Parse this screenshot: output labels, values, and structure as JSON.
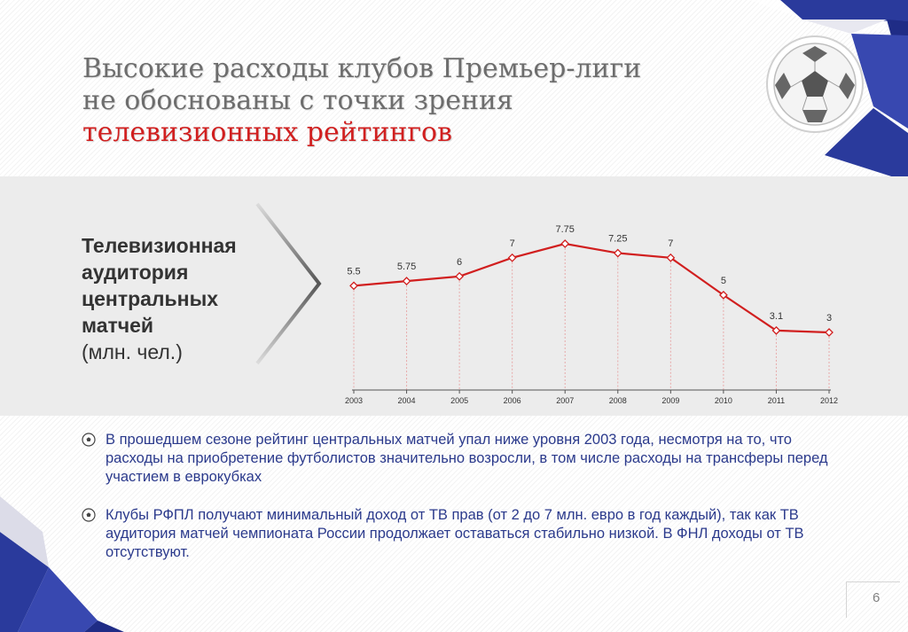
{
  "title": {
    "line1": "Высокие расходы клубов Премьер-лиги",
    "line2": "не обоснованы с точки зрения",
    "line3": "телевизионных рейтингов"
  },
  "colors": {
    "title_gray": "#6d6d6d",
    "title_accent": "#d11f1f",
    "line": "#d11f1f",
    "bullet_text": "#2b3a8c",
    "deco_blue": "#2a3a9c"
  },
  "chart_label": {
    "bold": "Телевизионная аудитория центральных матчей",
    "unit": "(млн. чел.)"
  },
  "chart_data": {
    "type": "line",
    "categories": [
      "2003",
      "2004",
      "2005",
      "2006",
      "2007",
      "2008",
      "2009",
      "2010",
      "2011",
      "2012"
    ],
    "values": [
      5.5,
      5.75,
      6,
      7,
      7.75,
      7.25,
      7,
      5,
      3.1,
      3
    ],
    "value_labels": [
      "5.5",
      "5.75",
      "6",
      "7",
      "7.75",
      "7.25",
      "7",
      "5",
      "3.1",
      "3"
    ],
    "grid": false,
    "marker": "diamond"
  },
  "bullets": [
    "В прошедшем сезоне рейтинг центральных матчей упал ниже уровня 2003 года, несмотря на то, что расходы на приобретение футболистов значительно возросли, в том числе расходы на трансферы перед участием в еврокубках",
    "Клубы РФПЛ получают минимальный доход от ТВ прав (от 2 до 7 млн. евро в год каждый), так как ТВ аудитория матчей чемпионата России продолжает оставаться стабильно низкой. В ФНЛ доходы от ТВ отсутствуют."
  ],
  "bullet_icon": "soccer-ball-icon",
  "page_number": "6"
}
